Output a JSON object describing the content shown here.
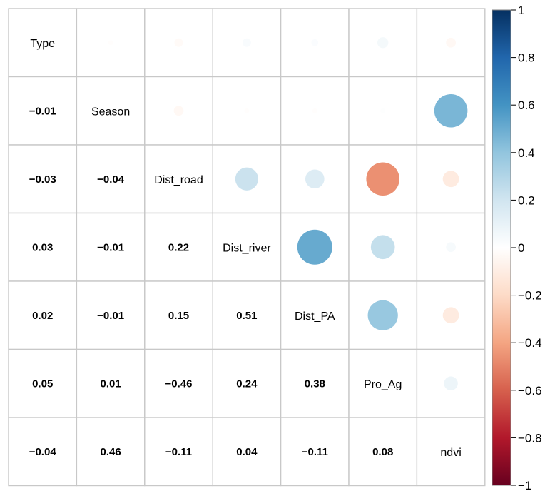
{
  "chart_data": {
    "type": "heatmap",
    "title": "",
    "variables": [
      "Type",
      "Season",
      "Dist_road",
      "Dist_river",
      "Dist_PA",
      "Pro_Ag",
      "ndvi"
    ],
    "matrix": [
      [
        1,
        -0.01,
        -0.03,
        0.03,
        0.02,
        0.05,
        -0.04
      ],
      [
        -0.01,
        1,
        -0.04,
        -0.01,
        -0.01,
        0.01,
        0.46
      ],
      [
        -0.03,
        -0.04,
        1,
        0.22,
        0.15,
        -0.46,
        -0.11
      ],
      [
        0.03,
        -0.01,
        0.22,
        1,
        0.51,
        0.24,
        0.04
      ],
      [
        0.02,
        -0.01,
        0.15,
        0.51,
        1,
        0.38,
        -0.11
      ],
      [
        0.05,
        0.01,
        -0.46,
        0.24,
        0.38,
        1,
        0.08
      ],
      [
        -0.04,
        0.46,
        -0.11,
        0.04,
        -0.11,
        0.08,
        1
      ]
    ],
    "lower_labels": [
      {
        "row": 1,
        "col": 0,
        "text": "−0.01"
      },
      {
        "row": 2,
        "col": 0,
        "text": "−0.03"
      },
      {
        "row": 2,
        "col": 1,
        "text": "−0.04"
      },
      {
        "row": 3,
        "col": 0,
        "text": "0.03"
      },
      {
        "row": 3,
        "col": 1,
        "text": "−0.01"
      },
      {
        "row": 3,
        "col": 2,
        "text": "0.22"
      },
      {
        "row": 4,
        "col": 0,
        "text": "0.02"
      },
      {
        "row": 4,
        "col": 1,
        "text": "−0.01"
      },
      {
        "row": 4,
        "col": 2,
        "text": "0.15"
      },
      {
        "row": 4,
        "col": 3,
        "text": "0.51"
      },
      {
        "row": 5,
        "col": 0,
        "text": "0.05"
      },
      {
        "row": 5,
        "col": 1,
        "text": "0.01"
      },
      {
        "row": 5,
        "col": 2,
        "text": "−0.46"
      },
      {
        "row": 5,
        "col": 3,
        "text": "0.24"
      },
      {
        "row": 5,
        "col": 4,
        "text": "0.38"
      },
      {
        "row": 6,
        "col": 0,
        "text": "−0.04"
      },
      {
        "row": 6,
        "col": 1,
        "text": "0.46"
      },
      {
        "row": 6,
        "col": 2,
        "text": "−0.11"
      },
      {
        "row": 6,
        "col": 3,
        "text": "0.04"
      },
      {
        "row": 6,
        "col": 4,
        "text": "−0.11"
      },
      {
        "row": 6,
        "col": 5,
        "text": "0.08"
      }
    ],
    "upper": "circles",
    "lower": "numbers",
    "diagonal": "variable names",
    "colorbar": {
      "range": [
        -1,
        1
      ],
      "ticks": [
        "1",
        "0.8",
        "0.6",
        "0.4",
        "0.2",
        "0",
        "−0.2",
        "−0.4",
        "−0.6",
        "−0.8",
        "−1"
      ],
      "tick_values": [
        1,
        0.8,
        0.6,
        0.4,
        0.2,
        0,
        -0.2,
        -0.4,
        -0.6,
        -0.8,
        -1
      ],
      "colors": [
        "#67001f",
        "#b2182b",
        "#d6604d",
        "#f4a582",
        "#fddbc7",
        "#ffffff",
        "#d1e5f0",
        "#92c5de",
        "#4393c3",
        "#2166ac",
        "#053061"
      ],
      "placement": "right"
    },
    "grid": true
  }
}
